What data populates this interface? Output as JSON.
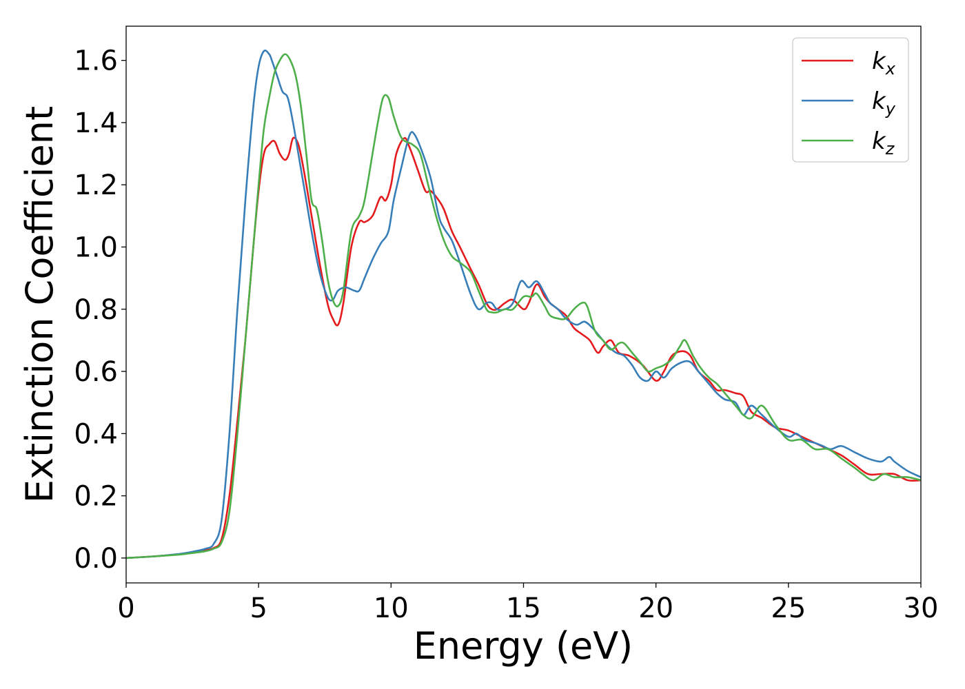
{
  "chart_data": {
    "type": "line",
    "title": "",
    "xlabel": "Energy (eV)",
    "ylabel": "Extinction Coefficient",
    "xlim": [
      0,
      30
    ],
    "ylim": [
      -0.08,
      1.71
    ],
    "xticks": [
      0,
      5,
      10,
      15,
      20,
      25,
      30
    ],
    "xtick_labels": [
      "0",
      "5",
      "10",
      "15",
      "20",
      "25",
      "30"
    ],
    "yticks": [
      0.0,
      0.2,
      0.4,
      0.6,
      0.8,
      1.0,
      1.2,
      1.4,
      1.6
    ],
    "ytick_labels": [
      "0.0",
      "0.2",
      "0.4",
      "0.6",
      "0.8",
      "1.0",
      "1.2",
      "1.4",
      "1.6"
    ],
    "grid": false,
    "legend_position": "top-right",
    "series": [
      {
        "name": "k_x",
        "legend_base": "k",
        "legend_sub": "x",
        "color": "#e41a1c",
        "x": [
          0,
          1,
          2,
          2.5,
          3,
          3.3,
          3.6,
          3.9,
          4.2,
          4.5,
          4.8,
          5.0,
          5.2,
          5.4,
          5.6,
          5.8,
          6.0,
          6.15,
          6.3,
          6.5,
          6.7,
          7.0,
          7.3,
          7.6,
          7.8,
          8.0,
          8.2,
          8.5,
          8.8,
          9.0,
          9.3,
          9.6,
          9.8,
          10.0,
          10.2,
          10.5,
          10.7,
          11.0,
          11.3,
          11.5,
          11.8,
          12.0,
          12.3,
          12.6,
          13.0,
          13.3,
          13.6,
          13.8,
          14.0,
          14.3,
          14.6,
          15.0,
          15.2,
          15.5,
          15.8,
          16.0,
          16.3,
          16.6,
          16.9,
          17.2,
          17.5,
          17.8,
          18.0,
          18.3,
          18.6,
          19.0,
          19.5,
          20.0,
          20.3,
          20.6,
          21.0,
          21.3,
          21.6,
          22.0,
          22.3,
          22.6,
          23.0,
          23.3,
          23.6,
          24.0,
          24.5,
          25.0,
          25.5,
          26.0,
          26.5,
          27.0,
          27.5,
          28.0,
          28.5,
          29.0,
          29.5,
          30.0
        ],
        "y": [
          0.0,
          0.005,
          0.012,
          0.018,
          0.025,
          0.032,
          0.06,
          0.2,
          0.44,
          0.7,
          1.0,
          1.18,
          1.3,
          1.33,
          1.34,
          1.3,
          1.28,
          1.3,
          1.35,
          1.33,
          1.25,
          1.1,
          0.95,
          0.82,
          0.77,
          0.75,
          0.82,
          1.0,
          1.08,
          1.08,
          1.1,
          1.16,
          1.15,
          1.2,
          1.3,
          1.35,
          1.32,
          1.25,
          1.18,
          1.18,
          1.15,
          1.12,
          1.05,
          1.0,
          0.93,
          0.88,
          0.82,
          0.8,
          0.8,
          0.82,
          0.83,
          0.8,
          0.82,
          0.88,
          0.84,
          0.82,
          0.8,
          0.78,
          0.74,
          0.72,
          0.7,
          0.66,
          0.68,
          0.7,
          0.66,
          0.65,
          0.62,
          0.57,
          0.6,
          0.65,
          0.665,
          0.65,
          0.6,
          0.57,
          0.54,
          0.54,
          0.53,
          0.52,
          0.47,
          0.45,
          0.42,
          0.41,
          0.39,
          0.37,
          0.35,
          0.33,
          0.3,
          0.27,
          0.27,
          0.27,
          0.25,
          0.25
        ]
      },
      {
        "name": "k_y",
        "legend_base": "k",
        "legend_sub": "y",
        "color": "#377eb8",
        "x": [
          0,
          1,
          2,
          2.5,
          3,
          3.3,
          3.6,
          3.9,
          4.2,
          4.5,
          4.8,
          5.0,
          5.2,
          5.4,
          5.5,
          5.7,
          5.9,
          6.1,
          6.3,
          6.5,
          6.8,
          7.0,
          7.3,
          7.6,
          7.8,
          8.0,
          8.3,
          8.6,
          8.8,
          9.0,
          9.3,
          9.6,
          9.9,
          10.1,
          10.4,
          10.7,
          10.9,
          11.2,
          11.5,
          11.8,
          12.0,
          12.3,
          12.6,
          13.0,
          13.3,
          13.6,
          13.8,
          14.0,
          14.3,
          14.6,
          14.9,
          15.2,
          15.5,
          15.8,
          16.0,
          16.3,
          16.6,
          17.0,
          17.3,
          17.6,
          17.9,
          18.2,
          18.5,
          18.8,
          19.1,
          19.4,
          19.7,
          20.0,
          20.3,
          20.6,
          21.0,
          21.3,
          21.6,
          22.0,
          22.3,
          22.6,
          23.0,
          23.3,
          23.6,
          24.0,
          24.5,
          25.0,
          25.3,
          25.6,
          26.0,
          26.3,
          26.6,
          27.0,
          27.5,
          28.0,
          28.5,
          28.8,
          29.0,
          29.5,
          30.0
        ],
        "y": [
          0.0,
          0.005,
          0.013,
          0.02,
          0.03,
          0.045,
          0.12,
          0.4,
          0.8,
          1.15,
          1.45,
          1.58,
          1.63,
          1.62,
          1.6,
          1.55,
          1.5,
          1.48,
          1.4,
          1.3,
          1.15,
          1.05,
          0.92,
          0.84,
          0.83,
          0.86,
          0.87,
          0.86,
          0.86,
          0.9,
          0.96,
          1.01,
          1.05,
          1.15,
          1.26,
          1.36,
          1.36,
          1.3,
          1.22,
          1.1,
          1.06,
          1.02,
          0.95,
          0.85,
          0.8,
          0.82,
          0.82,
          0.8,
          0.8,
          0.82,
          0.89,
          0.87,
          0.89,
          0.85,
          0.82,
          0.8,
          0.77,
          0.75,
          0.76,
          0.74,
          0.71,
          0.68,
          0.66,
          0.65,
          0.62,
          0.58,
          0.57,
          0.6,
          0.58,
          0.61,
          0.63,
          0.63,
          0.6,
          0.56,
          0.53,
          0.51,
          0.5,
          0.46,
          0.49,
          0.46,
          0.42,
          0.39,
          0.4,
          0.38,
          0.37,
          0.36,
          0.35,
          0.36,
          0.34,
          0.32,
          0.31,
          0.325,
          0.31,
          0.28,
          0.26
        ]
      },
      {
        "name": "k_z",
        "legend_base": "k",
        "legend_sub": "z",
        "color": "#4daf4a",
        "x": [
          0,
          1,
          2,
          2.5,
          3,
          3.3,
          3.6,
          3.9,
          4.2,
          4.5,
          4.8,
          5.0,
          5.2,
          5.4,
          5.6,
          5.8,
          6.0,
          6.2,
          6.4,
          6.6,
          6.8,
          7.0,
          7.2,
          7.4,
          7.6,
          7.8,
          8.0,
          8.2,
          8.5,
          8.8,
          9.0,
          9.3,
          9.5,
          9.7,
          9.9,
          10.1,
          10.4,
          10.8,
          11.1,
          11.4,
          11.7,
          12.0,
          12.3,
          12.6,
          13.0,
          13.3,
          13.6,
          13.8,
          14.0,
          14.3,
          14.6,
          15.0,
          15.3,
          15.5,
          15.8,
          16.0,
          16.3,
          16.6,
          16.9,
          17.2,
          17.4,
          17.7,
          18.0,
          18.3,
          18.6,
          18.8,
          19.1,
          19.4,
          19.7,
          20.0,
          20.3,
          20.6,
          20.9,
          21.1,
          21.4,
          21.7,
          22.0,
          22.3,
          22.6,
          23.0,
          23.3,
          23.6,
          24.0,
          24.5,
          25.0,
          25.5,
          26.0,
          26.5,
          27.0,
          27.5,
          27.8,
          28.2,
          28.6,
          29.0,
          29.5,
          30.0
        ],
        "y": [
          0.0,
          0.005,
          0.011,
          0.016,
          0.022,
          0.03,
          0.05,
          0.15,
          0.4,
          0.7,
          1.0,
          1.2,
          1.38,
          1.48,
          1.56,
          1.6,
          1.62,
          1.6,
          1.55,
          1.45,
          1.3,
          1.15,
          1.12,
          1.02,
          0.9,
          0.83,
          0.81,
          0.86,
          1.05,
          1.1,
          1.15,
          1.3,
          1.4,
          1.48,
          1.48,
          1.42,
          1.35,
          1.33,
          1.3,
          1.2,
          1.1,
          1.02,
          0.97,
          0.95,
          0.92,
          0.86,
          0.8,
          0.79,
          0.79,
          0.8,
          0.8,
          0.84,
          0.84,
          0.85,
          0.81,
          0.78,
          0.77,
          0.77,
          0.8,
          0.82,
          0.81,
          0.73,
          0.7,
          0.67,
          0.69,
          0.69,
          0.66,
          0.63,
          0.6,
          0.61,
          0.62,
          0.64,
          0.68,
          0.7,
          0.65,
          0.61,
          0.58,
          0.56,
          0.53,
          0.49,
          0.46,
          0.45,
          0.49,
          0.43,
          0.38,
          0.38,
          0.35,
          0.35,
          0.32,
          0.29,
          0.27,
          0.25,
          0.27,
          0.26,
          0.26,
          0.25
        ]
      }
    ]
  }
}
